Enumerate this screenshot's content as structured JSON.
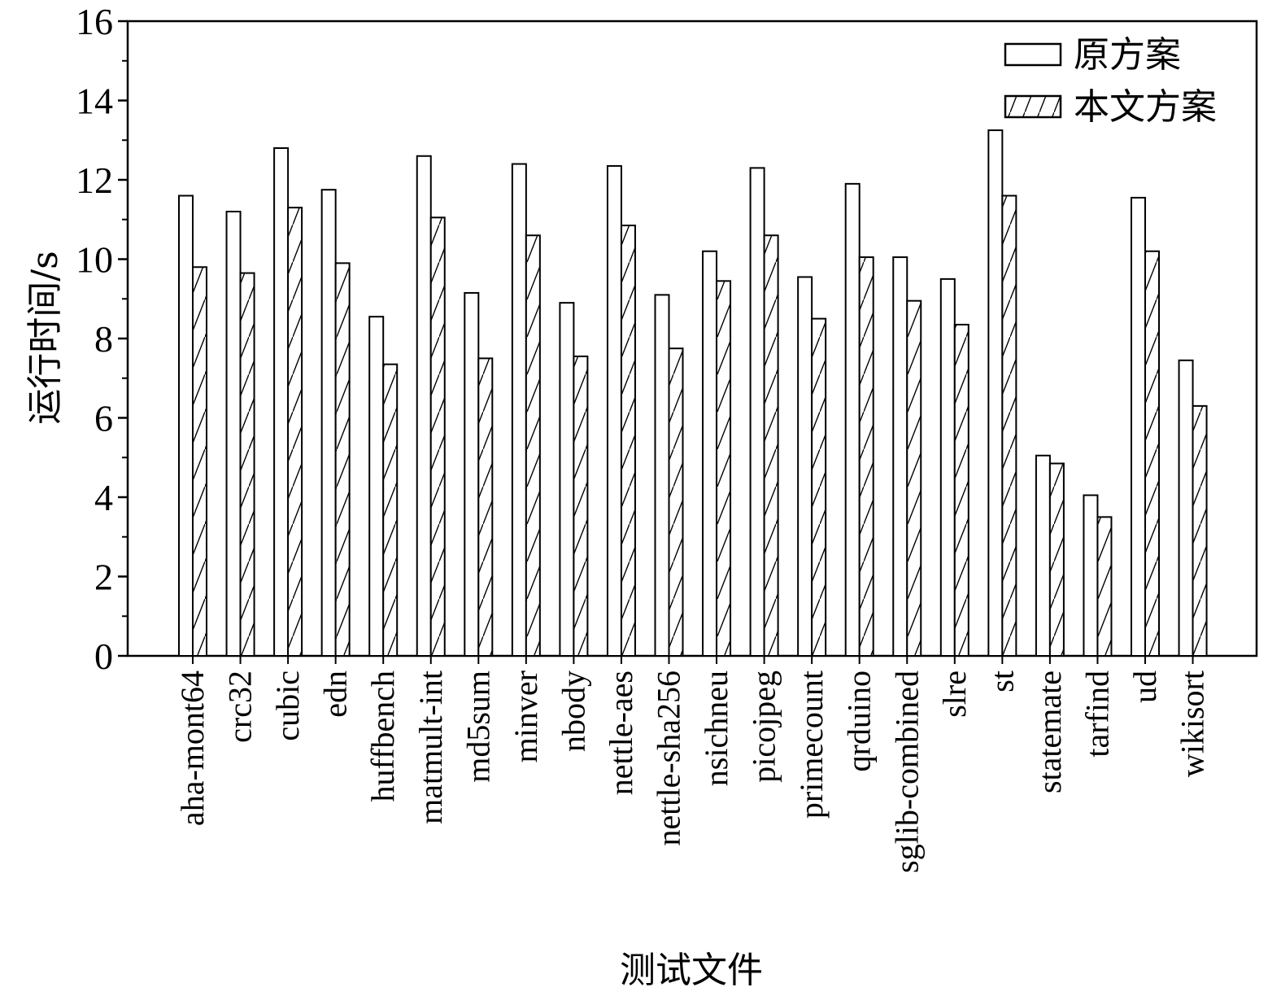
{
  "chart_data": {
    "type": "bar",
    "title": "",
    "xlabel": "测试文件",
    "ylabel": "运行时间/s",
    "ylim": [
      0,
      16
    ],
    "yticks": [
      0,
      2,
      4,
      6,
      8,
      10,
      12,
      14,
      16
    ],
    "legend_position": "top-right",
    "categories": [
      "aha-mont64",
      "crc32",
      "cubic",
      "edn",
      "huffbench",
      "matmult-int",
      "md5sum",
      "minver",
      "nbody",
      "nettle-aes",
      "nettle-sha256",
      "nsichneu",
      "picojpeg",
      "primecount",
      "qrduino",
      "sglib-combined",
      "slre",
      "st",
      "statemate",
      "tarfind",
      "ud",
      "wikisort"
    ],
    "series": [
      {
        "name": "原方案",
        "pattern": "none",
        "values": [
          11.6,
          11.2,
          12.8,
          11.75,
          8.55,
          12.6,
          9.15,
          12.4,
          8.9,
          12.35,
          9.1,
          10.2,
          12.3,
          9.55,
          11.9,
          10.05,
          9.5,
          13.25,
          5.05,
          4.05,
          11.55,
          7.45
        ]
      },
      {
        "name": "本文方案",
        "pattern": "hatch",
        "values": [
          9.8,
          9.65,
          11.3,
          9.9,
          7.35,
          11.05,
          7.5,
          10.6,
          7.55,
          10.85,
          7.75,
          9.45,
          10.6,
          8.5,
          10.05,
          8.95,
          8.35,
          11.6,
          4.85,
          3.5,
          10.2,
          6.3
        ]
      }
    ]
  }
}
